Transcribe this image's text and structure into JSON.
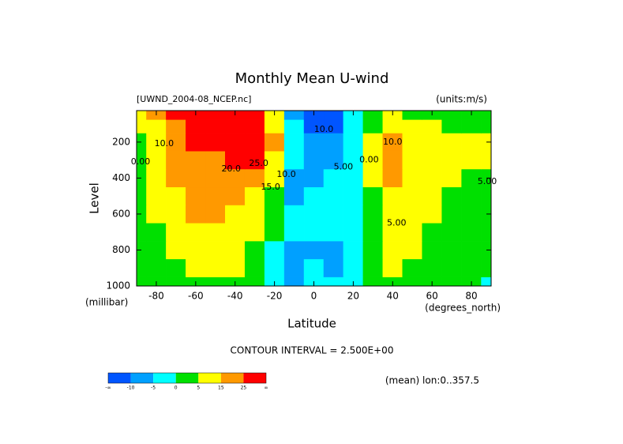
{
  "chart_data": {
    "type": "filled-contour",
    "title": "Monthly Mean U-wind",
    "subtitle": "[UWND_2004-08_NCEP.nc]",
    "units": "(units:m/s)",
    "x_label": "Latitude",
    "x_units": "(degrees_north)",
    "y_label": "Level",
    "y_units": "(millibar)",
    "contour_interval": "CONTOUR INTERVAL = 2.500E+00",
    "footnote": "(mean) lon:0..357.5",
    "x": [
      -90,
      -80,
      -70,
      -60,
      -50,
      -40,
      -30,
      -20,
      -10,
      0,
      10,
      20,
      30,
      40,
      50,
      60,
      70,
      80,
      90
    ],
    "levels": [
      1000,
      900,
      800,
      700,
      600,
      500,
      400,
      300,
      200,
      100,
      50
    ],
    "z": [
      [
        1,
        1,
        2,
        4,
        4,
        2,
        0,
        -3,
        -6,
        -4,
        -2,
        -2,
        1,
        3,
        3,
        2,
        1,
        1,
        -1
      ],
      [
        2,
        2,
        4,
        8,
        9,
        6,
        2,
        -2,
        -6,
        -5,
        -6,
        -3,
        1,
        5,
        4,
        2,
        1,
        1,
        1
      ],
      [
        2,
        3,
        6,
        11,
        11,
        8,
        3,
        -1,
        -6,
        -6,
        -7,
        -3,
        2,
        6,
        6,
        3,
        2,
        2,
        2
      ],
      [
        2,
        4,
        9,
        13,
        13,
        10,
        5,
        0,
        -5,
        -5,
        -5,
        -3,
        2,
        7,
        7,
        4,
        2,
        2,
        2
      ],
      [
        3,
        5,
        11,
        17,
        16,
        13,
        8,
        1,
        -5,
        -4,
        -4,
        -3,
        3,
        9,
        9,
        5,
        3,
        2,
        2
      ],
      [
        3,
        7,
        14,
        19,
        19,
        17,
        12,
        3,
        -6,
        -5,
        -4,
        -3,
        4,
        12,
        11,
        6,
        4,
        3,
        3
      ],
      [
        4,
        8,
        16,
        21,
        21,
        21,
        18,
        6,
        -6,
        -6,
        -5,
        -2,
        6,
        15,
        13,
        7,
        5,
        4,
        4
      ],
      [
        4,
        9,
        18,
        24,
        24,
        25,
        28,
        11,
        -4,
        -7,
        -6,
        -1,
        7,
        17,
        14,
        8,
        6,
        5,
        5
      ],
      [
        4,
        10,
        21,
        26,
        28,
        30,
        33,
        15,
        -3,
        -8,
        -8,
        -2,
        6,
        19,
        12,
        8,
        6,
        5,
        5
      ],
      [
        5,
        12,
        24,
        28,
        29,
        28,
        26,
        10,
        -5,
        -13,
        -12,
        -4,
        3,
        9,
        6,
        5,
        4,
        4,
        4
      ],
      [
        6,
        15,
        28,
        32,
        32,
        30,
        25,
        8,
        -6,
        -15,
        -14,
        -5,
        1,
        5,
        4,
        3,
        3,
        2,
        2
      ]
    ],
    "xlim": [
      -90,
      90
    ],
    "xticks": [
      -80,
      -60,
      -40,
      -20,
      0,
      20,
      40,
      60,
      80
    ],
    "ylim": [
      1000,
      25
    ],
    "yticks": [
      200,
      400,
      600,
      800,
      1000
    ],
    "colorbar": {
      "ticks": [
        "-∞",
        -10,
        -5,
        0,
        5,
        15,
        25,
        "∞"
      ],
      "colors": [
        "#0055ff",
        "#00a0ff",
        "#00ffff",
        "#00e000",
        "#ffff00",
        "#ff9900",
        "#ff0000"
      ]
    },
    "contour_labels": [
      {
        "text": "10.0",
        "x": -76,
        "y": 210
      },
      {
        "text": "0.00",
        "x": -88,
        "y": 310
      },
      {
        "text": "20.0",
        "x": -42,
        "y": 350
      },
      {
        "text": "25.0",
        "x": -28,
        "y": 320
      },
      {
        "text": "15.0",
        "x": -22,
        "y": 450
      },
      {
        "text": "10.0",
        "x": -14,
        "y": 380
      },
      {
        "text": "10.0",
        "x": 5,
        "y": 130
      },
      {
        "text": "5.00",
        "x": 15,
        "y": 340
      },
      {
        "text": "10.0",
        "x": 40,
        "y": 200
      },
      {
        "text": "0.00",
        "x": 28,
        "y": 300
      },
      {
        "text": "5.00",
        "x": 88,
        "y": 420
      },
      {
        "text": "5.00",
        "x": 42,
        "y": 650
      }
    ]
  }
}
